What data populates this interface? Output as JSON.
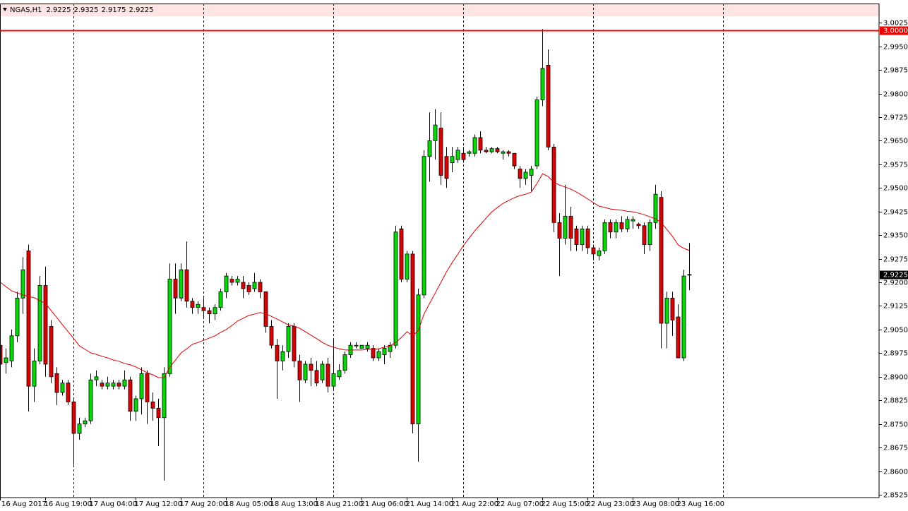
{
  "chart_data": {
    "type": "candlestick",
    "title": "NGAS,H1",
    "header_values": [
      2.9225,
      2.9325,
      2.9175,
      2.9225
    ],
    "categories": [
      "16 Aug 2017",
      null,
      null,
      null,
      null,
      null,
      null,
      null,
      "16 Aug 19:00",
      null,
      null,
      null,
      null,
      null,
      null,
      null,
      "17 Aug 04:00",
      null,
      null,
      null,
      null,
      null,
      null,
      null,
      "17 Aug 12:00",
      null,
      null,
      null,
      null,
      null,
      null,
      null,
      "17 Aug 20:00",
      null,
      null,
      null,
      null,
      null,
      null,
      null,
      "18 Aug 05:00",
      null,
      null,
      null,
      null,
      null,
      null,
      null,
      "18 Aug 13:00",
      null,
      null,
      null,
      null,
      null,
      null,
      null,
      "18 Aug 21:00",
      null,
      null,
      null,
      null,
      null,
      null,
      null,
      "21 Aug 06:00",
      null,
      null,
      null,
      null,
      null,
      null,
      null,
      "21 Aug 14:00",
      null,
      null,
      null,
      null,
      null,
      null,
      null,
      "21 Aug 22:00",
      null,
      null,
      null,
      null,
      null,
      null,
      null,
      "22 Aug 07:00",
      null,
      null,
      null,
      null,
      null,
      null,
      null,
      "22 Aug 15:00",
      null,
      null,
      null,
      null,
      null,
      null,
      null,
      "22 Aug 23:00",
      null,
      null,
      null,
      null,
      null,
      null,
      null,
      "23 Aug 08:00",
      null,
      null,
      null,
      null,
      null,
      null,
      null,
      "23 Aug 16:00",
      null,
      null
    ],
    "open": [
      2.9,
      2.8945,
      2.895,
      2.903,
      2.915,
      2.93,
      2.887,
      2.895,
      2.919,
      2.906,
      2.891,
      2.885,
      2.888,
      2.882,
      2.872,
      2.875,
      2.876,
      2.889,
      2.888,
      2.887,
      2.887,
      2.888,
      2.887,
      2.889,
      2.879,
      2.883,
      2.891,
      2.882,
      2.88,
      2.877,
      2.891,
      2.921,
      2.915,
      2.924,
      2.914,
      2.912,
      2.912,
      2.911,
      2.91,
      2.912,
      2.917,
      2.921,
      2.92,
      2.92,
      2.919,
      2.918,
      2.92,
      2.917,
      2.906,
      2.9,
      2.895,
      2.898,
      2.906,
      2.895,
      2.889,
      2.894,
      2.892,
      2.889,
      2.894,
      2.887,
      2.89,
      2.892,
      2.897,
      2.9,
      2.899,
      2.899,
      2.899,
      2.896,
      2.897,
      2.898,
      2.9,
      2.937,
      2.921,
      2.929,
      2.875,
      2.916,
      2.96,
      2.965,
      2.969,
      2.96,
      2.958,
      2.959,
      2.961,
      2.961,
      2.961,
      2.966,
      2.962,
      2.9615,
      2.9625,
      2.961,
      2.9615,
      2.961,
      2.956,
      2.953,
      2.954,
      2.957,
      2.978,
      2.989,
      2.963,
      2.939,
      2.934,
      2.941,
      2.937,
      2.932,
      2.937,
      2.931,
      2.9285,
      2.93,
      2.939,
      2.936,
      2.939,
      2.937,
      2.9395,
      2.9385,
      2.938,
      2.932,
      2.939,
      2.947,
      2.907,
      2.915,
      2.909,
      2.896,
      2.9225
    ],
    "high": [
      2.902,
      2.899,
      2.905,
      2.917,
      2.928,
      2.932,
      2.899,
      2.922,
      2.925,
      2.908,
      2.893,
      2.889,
      2.889,
      2.883,
      2.877,
      2.877,
      2.891,
      2.892,
      2.889,
      2.89,
      2.889,
      2.889,
      2.892,
      2.89,
      2.884,
      2.893,
      2.892,
      2.885,
      2.883,
      2.893,
      2.926,
      2.926,
      2.926,
      2.933,
      2.915,
      2.914,
      2.915,
      2.912,
      2.913,
      2.918,
      2.923,
      2.922,
      2.922,
      2.922,
      2.92,
      2.923,
      2.921,
      2.917,
      2.908,
      2.902,
      2.9,
      2.907,
      2.907,
      2.897,
      2.895,
      2.896,
      2.895,
      2.895,
      2.896,
      2.902,
      2.894,
      2.898,
      2.901,
      2.901,
      2.9,
      2.901,
      2.9,
      2.899,
      2.9,
      2.901,
      2.938,
      2.938,
      2.93,
      2.93,
      2.918,
      2.962,
      2.974,
      2.975,
      2.974,
      2.963,
      2.963,
      2.963,
      2.963,
      2.962,
      2.967,
      2.968,
      2.963,
      2.963,
      2.963,
      2.962,
      2.962,
      2.961,
      2.957,
      2.956,
      2.957,
      2.979,
      3.0005,
      2.994,
      2.964,
      2.942,
      2.951,
      2.944,
      2.938,
      2.938,
      2.938,
      2.932,
      2.931,
      2.94,
      2.94,
      2.94,
      2.941,
      2.941,
      2.941,
      2.939,
      2.939,
      2.94,
      2.951,
      2.949,
      2.917,
      2.917,
      2.913,
      2.924,
      2.9325
    ],
    "low": [
      2.89,
      2.891,
      2.893,
      2.901,
      2.91,
      2.879,
      2.882,
      2.894,
      2.89,
      2.888,
      2.881,
      2.884,
      2.881,
      2.862,
      2.87,
      2.874,
      2.875,
      2.887,
      2.886,
      2.886,
      2.886,
      2.886,
      2.886,
      2.876,
      2.876,
      2.878,
      2.875,
      2.876,
      2.868,
      2.857,
      2.89,
      2.91,
      2.914,
      2.912,
      2.91,
      2.91,
      2.909,
      2.907,
      2.908,
      2.911,
      2.915,
      2.919,
      2.919,
      2.915,
      2.916,
      2.917,
      2.915,
      2.904,
      2.899,
      2.883,
      2.892,
      2.896,
      2.893,
      2.882,
      2.888,
      2.887,
      2.887,
      2.888,
      2.885,
      2.886,
      2.889,
      2.891,
      2.896,
      2.899,
      2.899,
      2.898,
      2.895,
      2.895,
      2.894,
      2.896,
      2.899,
      2.92,
      2.92,
      2.872,
      2.863,
      2.915,
      2.952,
      2.959,
      2.951,
      2.95,
      2.955,
      2.958,
      2.958,
      2.96,
      2.96,
      2.961,
      2.961,
      2.961,
      2.961,
      2.959,
      2.96,
      2.956,
      2.95,
      2.951,
      2.949,
      2.956,
      2.976,
      2.962,
      2.936,
      2.922,
      2.932,
      2.93,
      2.93,
      2.93,
      2.929,
      2.927,
      2.927,
      2.929,
      2.934,
      2.934,
      2.936,
      2.936,
      2.937,
      2.937,
      2.929,
      2.93,
      2.937,
      2.899,
      2.899,
      2.903,
      2.896,
      2.895,
      2.9175
    ],
    "close": [
      2.894,
      2.896,
      2.903,
      2.915,
      2.924,
      2.887,
      2.895,
      2.919,
      2.894,
      2.89,
      2.885,
      2.888,
      2.882,
      2.872,
      2.875,
      2.876,
      2.889,
      2.89,
      2.887,
      2.888,
      2.888,
      2.887,
      2.889,
      2.879,
      2.883,
      2.891,
      2.882,
      2.88,
      2.877,
      2.891,
      2.921,
      2.915,
      2.924,
      2.914,
      2.912,
      2.913,
      2.911,
      2.91,
      2.912,
      2.917,
      2.922,
      2.92,
      2.921,
      2.918,
      2.917,
      2.92,
      2.917,
      2.906,
      2.9,
      2.895,
      2.898,
      2.906,
      2.895,
      2.889,
      2.894,
      2.892,
      2.888,
      2.894,
      2.887,
      2.891,
      2.892,
      2.897,
      2.9,
      2.9,
      2.9,
      2.9,
      2.896,
      2.898,
      2.899,
      2.9,
      2.936,
      2.921,
      2.929,
      2.875,
      2.916,
      2.96,
      2.965,
      2.97,
      2.954,
      2.953,
      2.96,
      2.962,
      2.959,
      2.9615,
      2.966,
      2.962,
      2.9615,
      2.9625,
      2.9615,
      2.9615,
      2.961,
      2.957,
      2.953,
      2.955,
      2.956,
      2.978,
      2.988,
      2.963,
      2.939,
      2.934,
      2.941,
      2.934,
      2.932,
      2.937,
      2.931,
      2.929,
      2.93,
      2.939,
      2.936,
      2.939,
      2.937,
      2.94,
      2.94,
      2.938,
      2.932,
      2.939,
      2.948,
      2.907,
      2.915,
      2.908,
      2.896,
      2.922,
      2.9225
    ],
    "ma_values": [
      2.92,
      2.9186,
      2.9173,
      2.9166,
      2.916,
      2.9155,
      2.9151,
      2.9142,
      2.9133,
      2.911,
      2.9088,
      2.9065,
      2.9043,
      2.9021,
      2.8998,
      2.8987,
      2.8976,
      2.8971,
      2.8965,
      2.896,
      2.8953,
      2.8949,
      2.8942,
      2.8938,
      2.8931,
      2.8922,
      2.8913,
      2.8906,
      2.8897,
      2.8897,
      2.8931,
      2.8953,
      2.8976,
      2.8989,
      2.9003,
      2.9009,
      2.9016,
      2.9023,
      2.903,
      2.9041,
      2.905,
      2.9063,
      2.9077,
      2.9086,
      2.9095,
      2.9099,
      2.9104,
      2.9099,
      2.9092,
      2.9083,
      2.9074,
      2.9065,
      2.9061,
      2.9054,
      2.9043,
      2.9032,
      2.9021,
      2.9009,
      2.9,
      2.8994,
      2.8989,
      2.8985,
      2.8985,
      2.8985,
      2.8985,
      2.8987,
      2.8987,
      2.8989,
      2.8994,
      2.8998,
      2.9009,
      2.9025,
      2.9043,
      2.903,
      2.9047,
      2.9099,
      2.9133,
      2.9166,
      2.92,
      2.9234,
      2.9263,
      2.929,
      2.9317,
      2.9341,
      2.9364,
      2.9384,
      2.9404,
      2.9424,
      2.9438,
      2.9451,
      2.946,
      2.9469,
      2.9476,
      2.948,
      2.9487,
      2.9514,
      2.9545,
      2.9536,
      2.9518,
      2.9509,
      2.9503,
      2.9496,
      2.9487,
      2.9476,
      2.9465,
      2.9453,
      2.9442,
      2.9438,
      2.9433,
      2.9431,
      2.9429,
      2.9426,
      2.9424,
      2.942,
      2.9415,
      2.9408,
      2.9402,
      2.939,
      2.9368,
      2.9346,
      2.9319,
      2.9308,
      2.9301
    ],
    "ma_color": "#dd0000",
    "up_color": "#00dd00",
    "down_color": "#dd0000",
    "wick_color": "#000000",
    "level": {
      "value": 3,
      "label": "3.0000"
    },
    "level_color": "#ee0000",
    "ylim": [
      2.8516,
      3.0086
    ],
    "yticks": [
      3.0025,
      {
        "value": 2.995,
        "label": "2.9950"
      },
      2.9875,
      {
        "value": 2.98,
        "label": "2.9800"
      },
      2.9725,
      {
        "value": 2.965,
        "label": "2.9650"
      },
      2.9575,
      {
        "value": 2.95,
        "label": "2.9500"
      },
      2.9425,
      {
        "value": 2.935,
        "label": "2.9350"
      },
      2.9275,
      {
        "value": 2.92,
        "label": "2.9200"
      },
      2.9125,
      {
        "value": 2.905,
        "label": "2.9050"
      },
      2.8975,
      {
        "value": 2.89,
        "label": "2.8900"
      },
      2.8825,
      {
        "value": 2.875,
        "label": "2.8750"
      },
      2.8675,
      {
        "value": 2.86,
        "label": "2.8600"
      },
      2.8525
    ],
    "grid": false
  }
}
